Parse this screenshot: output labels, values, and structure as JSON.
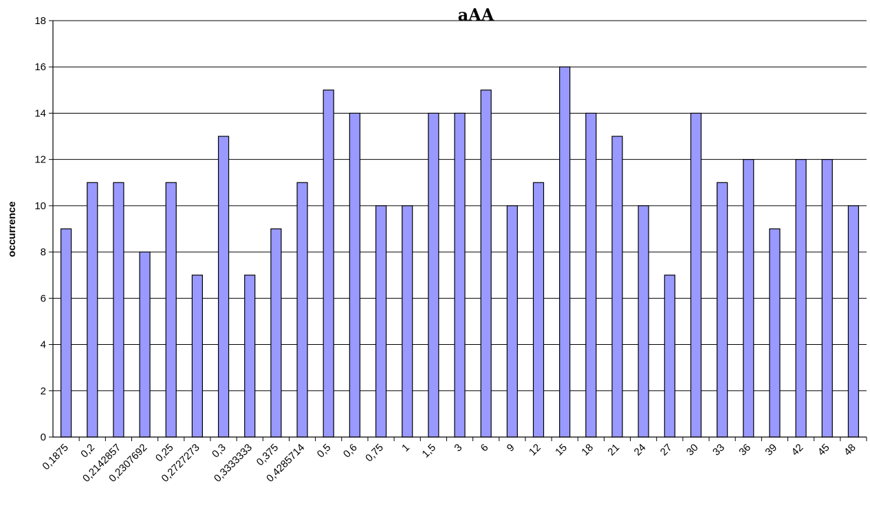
{
  "chart_data": {
    "type": "bar",
    "title": "aAA",
    "xlabel": "",
    "ylabel": "occurrence",
    "ylim": [
      0,
      18
    ],
    "ytick_step": 2,
    "grid": true,
    "colors": {
      "bar_fill": "#9999ff",
      "bar_stroke": "#000000"
    },
    "categories": [
      "0,1875",
      "0,2",
      "0,2142857",
      "0,2307692",
      "0,25",
      "0,2727273",
      "0,3",
      "0,3333333",
      "0,375",
      "0,4285714",
      "0,5",
      "0,6",
      "0,75",
      "1",
      "1,5",
      "3",
      "6",
      "9",
      "12",
      "15",
      "18",
      "21",
      "24",
      "27",
      "30",
      "33",
      "36",
      "39",
      "42",
      "45",
      "48"
    ],
    "values": [
      9,
      11,
      11,
      8,
      11,
      7,
      13,
      7,
      9,
      11,
      15,
      14,
      10,
      10,
      14,
      14,
      15,
      10,
      11,
      16,
      14,
      13,
      10,
      7,
      14,
      11,
      12,
      9,
      12,
      12,
      10
    ]
  }
}
